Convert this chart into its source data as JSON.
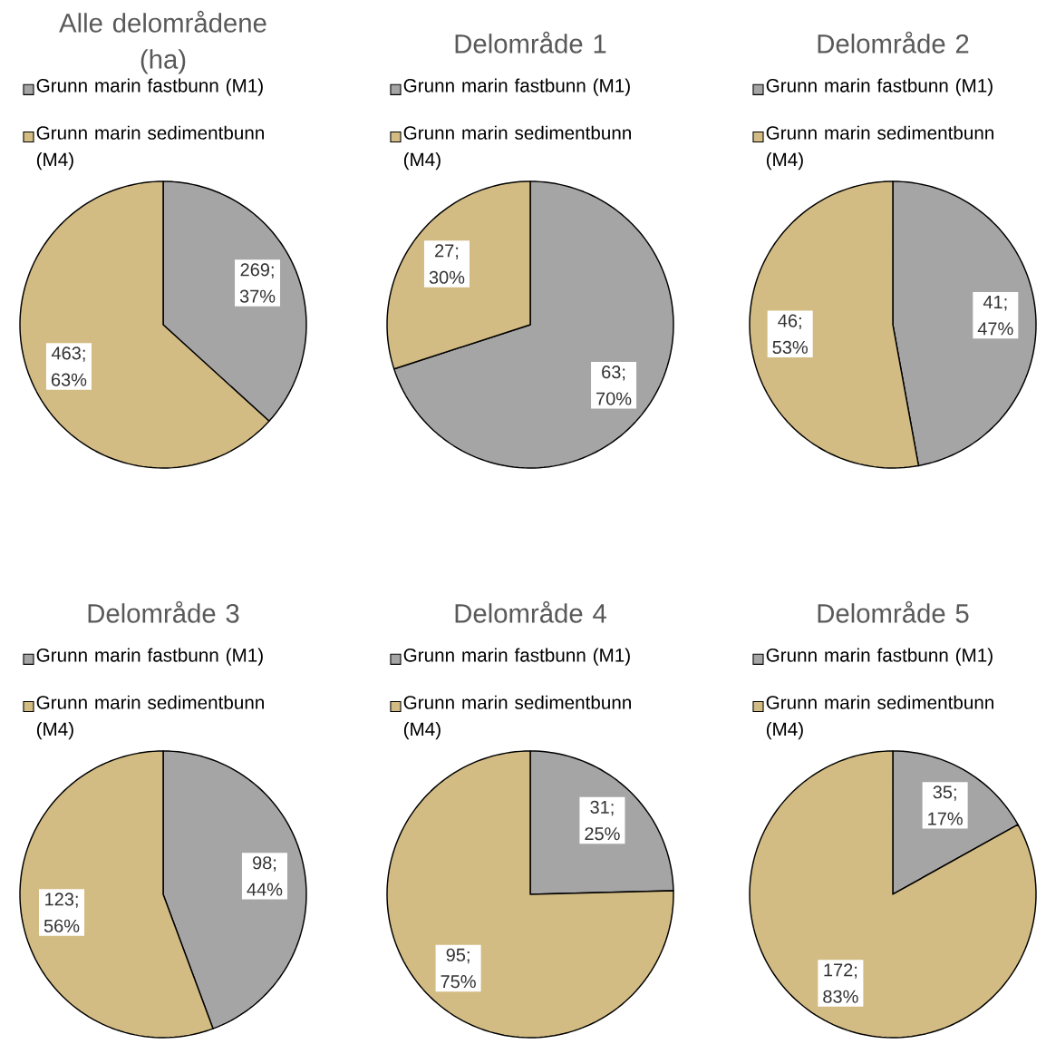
{
  "chart_data": [
    {
      "type": "pie",
      "title": "Alle delområdene (ha)",
      "categories": [
        "Grunn marin fastbunn (M1)",
        "Grunn marin sedimentbunn (M4)"
      ],
      "values": [
        269,
        463
      ],
      "colors": [
        "#a5a5a5",
        "#d3bc84"
      ],
      "value_labels": [
        "269; 37%",
        "463; 63%"
      ],
      "legend": "top"
    },
    {
      "type": "pie",
      "title": "Delområde 1",
      "categories": [
        "Grunn marin fastbunn (M1)",
        "Grunn marin sedimentbunn (M4)"
      ],
      "values": [
        63,
        27
      ],
      "colors": [
        "#a5a5a5",
        "#d3bc84"
      ],
      "value_labels": [
        "63; 70%",
        "27; 30%"
      ],
      "legend": "top"
    },
    {
      "type": "pie",
      "title": "Delområde 2",
      "categories": [
        "Grunn marin fastbunn (M1)",
        "Grunn marin sedimentbunn (M4)"
      ],
      "values": [
        41,
        46
      ],
      "colors": [
        "#a5a5a5",
        "#d3bc84"
      ],
      "value_labels": [
        "41; 47%",
        "46; 53%"
      ],
      "legend": "top"
    },
    {
      "type": "pie",
      "title": "Delområde 3",
      "categories": [
        "Grunn marin fastbunn (M1)",
        "Grunn marin sedimentbunn (M4)"
      ],
      "values": [
        98,
        123
      ],
      "colors": [
        "#a5a5a5",
        "#d3bc84"
      ],
      "value_labels": [
        "98; 44%",
        "123; 56%"
      ],
      "legend": "top"
    },
    {
      "type": "pie",
      "title": "Delområde 4",
      "categories": [
        "Grunn marin fastbunn (M1)",
        "Grunn marin sedimentbunn (M4)"
      ],
      "values": [
        31,
        95
      ],
      "colors": [
        "#a5a5a5",
        "#d3bc84"
      ],
      "value_labels": [
        "31; 25%",
        "95; 75%"
      ],
      "legend": "top"
    },
    {
      "type": "pie",
      "title": "Delområde 5",
      "categories": [
        "Grunn marin fastbunn (M1)",
        "Grunn marin sedimentbunn (M4)"
      ],
      "values": [
        35,
        172
      ],
      "colors": [
        "#a5a5a5",
        "#d3bc84"
      ],
      "value_labels": [
        "35; 17%",
        "172; 83%"
      ],
      "legend": "top"
    }
  ]
}
